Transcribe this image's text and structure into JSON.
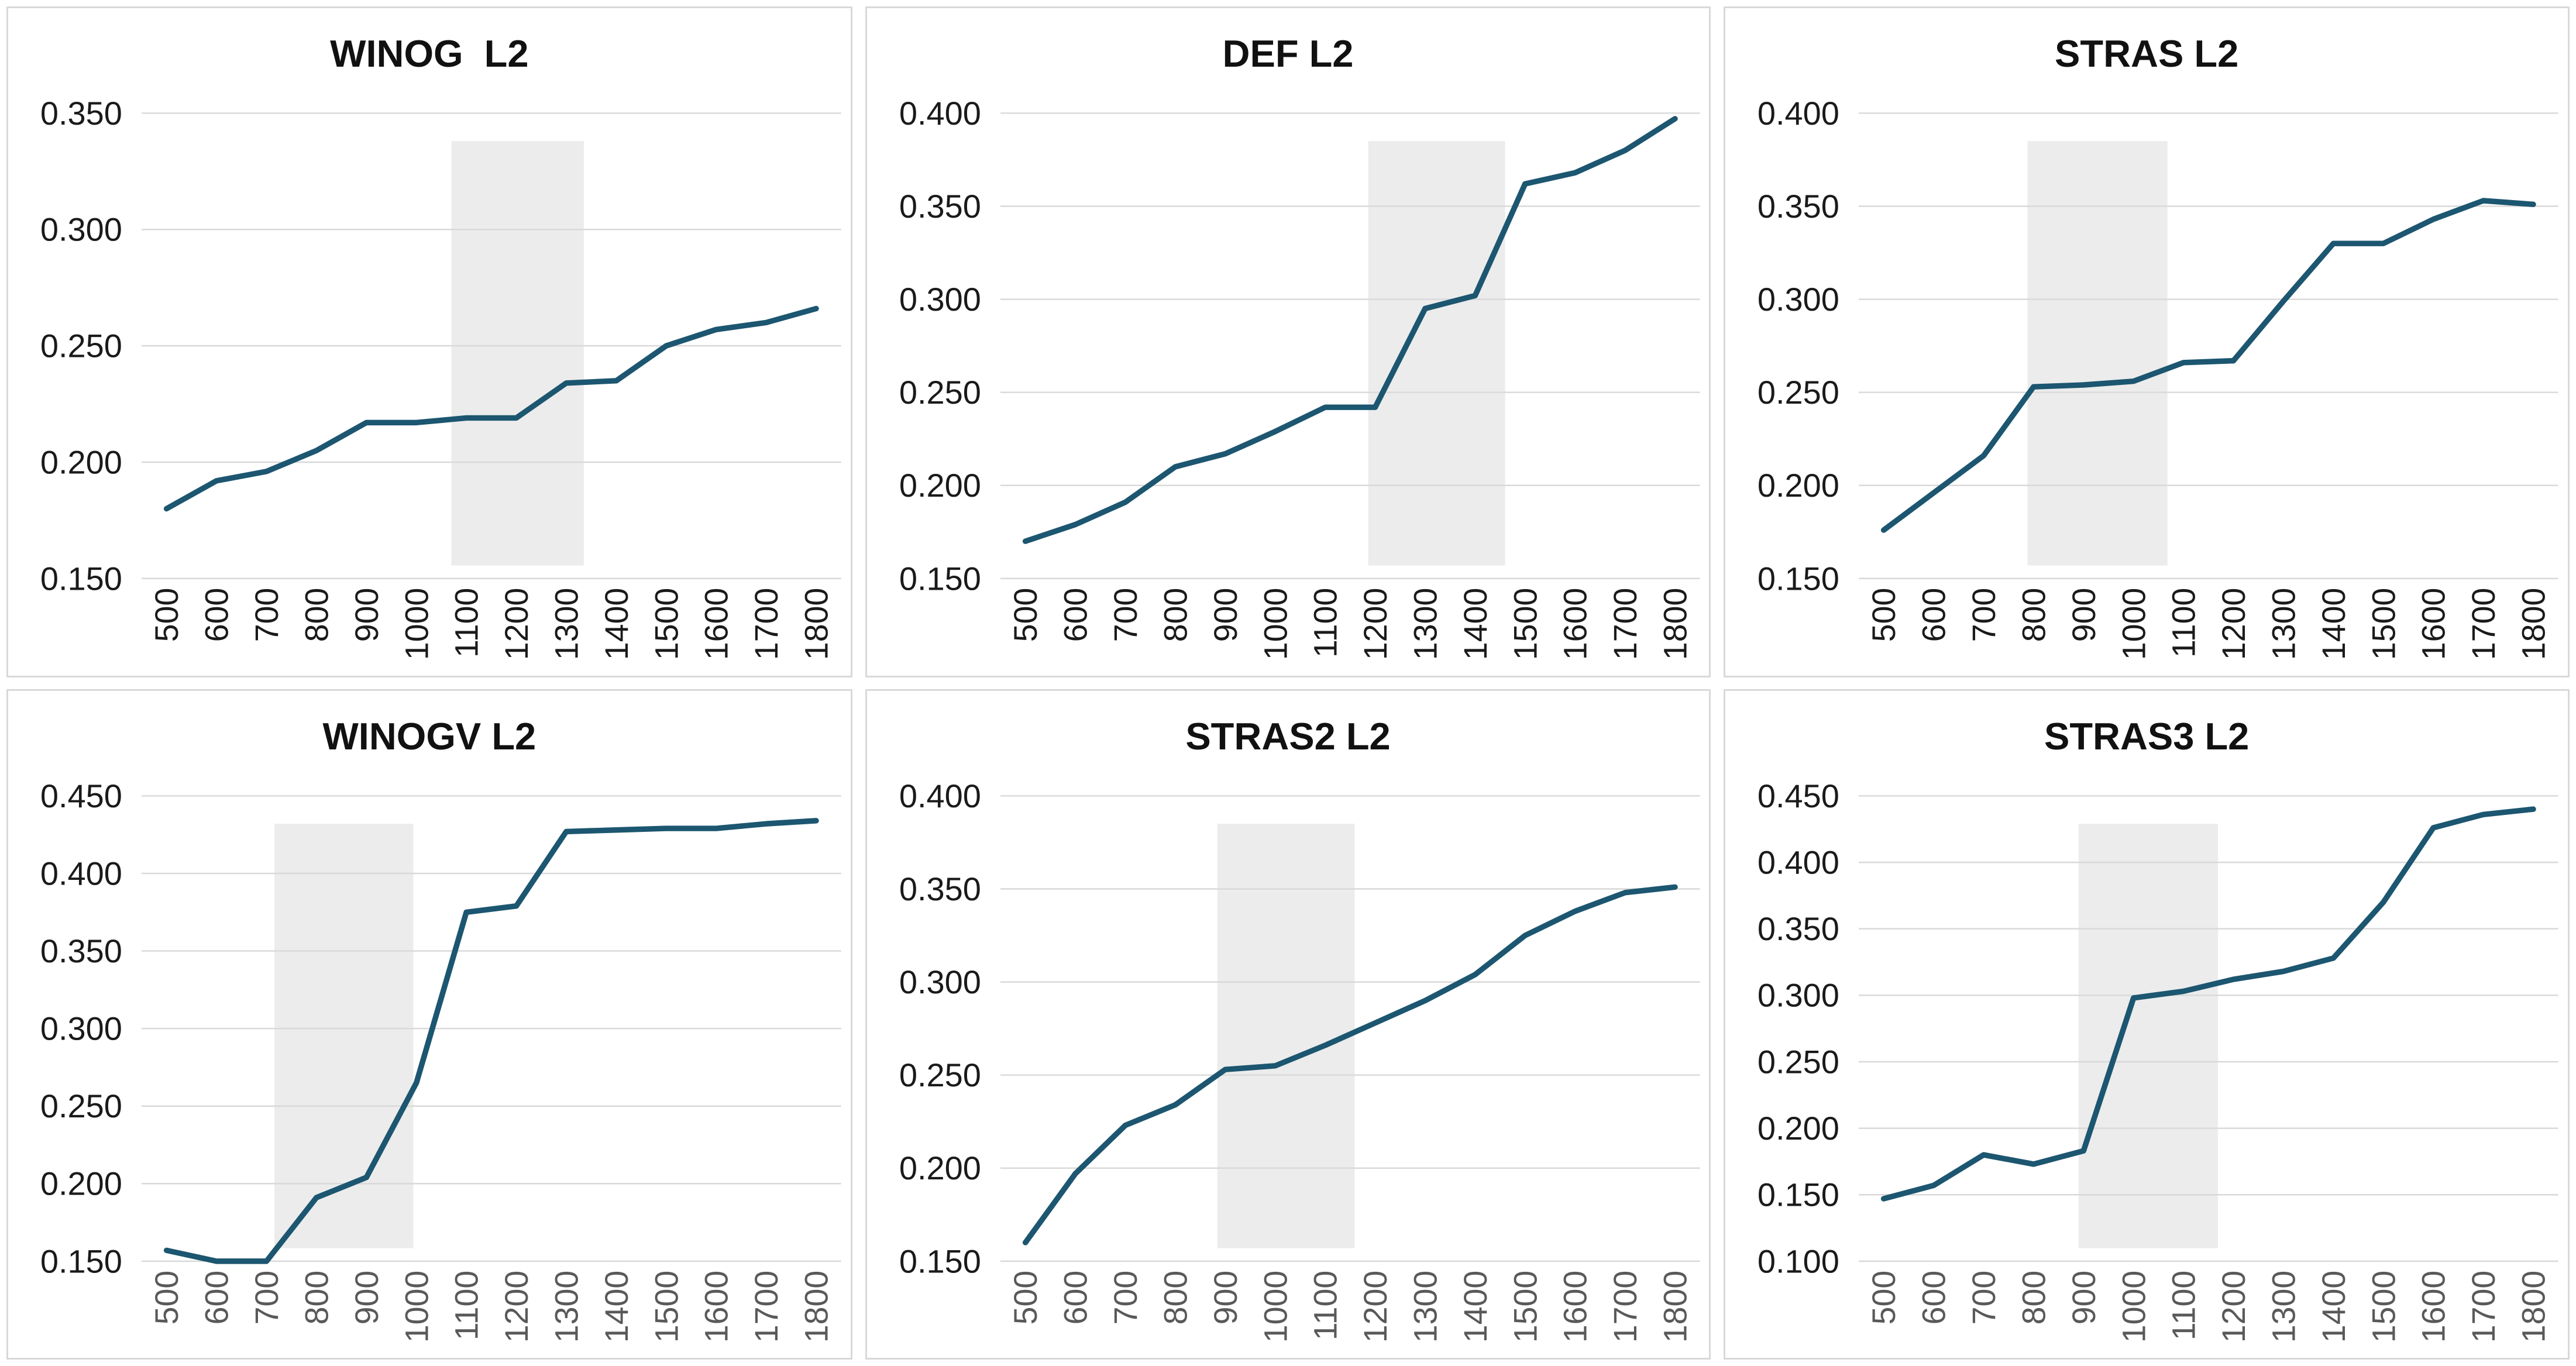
{
  "styles": {
    "line_color": "#1C5670",
    "band_color": "#ECECEC",
    "grid_color": "#D9D9D9",
    "panel_border_color": "#D9D9D9",
    "x_label_color_top_row": "#1A1A1A",
    "x_label_color_bottom_row": "#595959",
    "y_label_color": "#1A1A1A",
    "title_color": "#111111"
  },
  "chart_data": [
    {
      "type": "line",
      "title": "WINOG  L2",
      "categories": [
        500,
        600,
        700,
        800,
        900,
        1000,
        1100,
        1200,
        1300,
        1400,
        1500,
        1600,
        1700,
        1800
      ],
      "values": [
        0.18,
        0.192,
        0.196,
        0.205,
        0.217,
        0.217,
        0.219,
        0.219,
        0.234,
        0.235,
        0.25,
        0.257,
        0.26,
        0.266
      ],
      "ylim": [
        0.15,
        0.35
      ],
      "ytick_step": 0.05,
      "ytick_labels": [
        "0.350",
        "0.300",
        "0.250",
        "0.200",
        "0.150"
      ],
      "band_x": {
        "from": 1070,
        "to": 1335
      },
      "grid": true,
      "legend": "none",
      "xlabel_color": "#1A1A1A"
    },
    {
      "type": "line",
      "title": "DEF L2",
      "categories": [
        500,
        600,
        700,
        800,
        900,
        1000,
        1100,
        1200,
        1300,
        1400,
        1500,
        1600,
        1700,
        1800
      ],
      "values": [
        0.17,
        0.179,
        0.191,
        0.21,
        0.217,
        0.229,
        0.242,
        0.242,
        0.295,
        0.302,
        0.362,
        0.368,
        0.38,
        0.397
      ],
      "ylim": [
        0.15,
        0.4
      ],
      "ytick_step": 0.05,
      "ytick_labels": [
        "0.400",
        "0.350",
        "0.300",
        "0.250",
        "0.200",
        "0.150"
      ],
      "band_x": {
        "from": 1186,
        "to": 1460
      },
      "grid": true,
      "legend": "none",
      "xlabel_color": "#1A1A1A"
    },
    {
      "type": "line",
      "title": "STRAS L2",
      "categories": [
        500,
        600,
        700,
        800,
        900,
        1000,
        1100,
        1200,
        1300,
        1400,
        1500,
        1600,
        1700,
        1800
      ],
      "values": [
        0.176,
        0.196,
        0.216,
        0.253,
        0.254,
        0.256,
        0.266,
        0.267,
        0.299,
        0.33,
        0.33,
        0.343,
        0.353,
        0.351
      ],
      "ylim": [
        0.15,
        0.4
      ],
      "ytick_step": 0.05,
      "ytick_labels": [
        "0.400",
        "0.350",
        "0.300",
        "0.250",
        "0.200",
        "0.150"
      ],
      "band_x": {
        "from": 788,
        "to": 1068
      },
      "grid": true,
      "legend": "none",
      "xlabel_color": "#1A1A1A"
    },
    {
      "type": "line",
      "title": "WINOGV L2",
      "categories": [
        500,
        600,
        700,
        800,
        900,
        1000,
        1100,
        1200,
        1300,
        1400,
        1500,
        1600,
        1700,
        1800
      ],
      "values": [
        0.157,
        0.15,
        0.15,
        0.191,
        0.204,
        0.265,
        0.375,
        0.379,
        0.427,
        0.428,
        0.429,
        0.429,
        0.432,
        0.434
      ],
      "ylim": [
        0.15,
        0.45
      ],
      "ytick_step": 0.05,
      "ytick_labels": [
        "0.450",
        "0.400",
        "0.350",
        "0.300",
        "0.250",
        "0.200",
        "0.150"
      ],
      "band_x": {
        "from": 716,
        "to": 994
      },
      "grid": true,
      "legend": "none",
      "xlabel_color": "#595959"
    },
    {
      "type": "line",
      "title": "STRAS2 L2",
      "categories": [
        500,
        600,
        700,
        800,
        900,
        1000,
        1100,
        1200,
        1300,
        1400,
        1500,
        1600,
        1700,
        1800
      ],
      "values": [
        0.16,
        0.197,
        0.223,
        0.234,
        0.253,
        0.255,
        0.266,
        0.278,
        0.29,
        0.304,
        0.325,
        0.338,
        0.348,
        0.351
      ],
      "ylim": [
        0.15,
        0.4
      ],
      "ytick_step": 0.05,
      "ytick_labels": [
        "0.400",
        "0.350",
        "0.300",
        "0.250",
        "0.200",
        "0.150"
      ],
      "band_x": {
        "from": 884,
        "to": 1159
      },
      "grid": true,
      "legend": "none",
      "xlabel_color": "#595959"
    },
    {
      "type": "line",
      "title": "STRAS3 L2",
      "categories": [
        500,
        600,
        700,
        800,
        900,
        1000,
        1100,
        1200,
        1300,
        1400,
        1500,
        1600,
        1700,
        1800
      ],
      "values": [
        0.147,
        0.157,
        0.18,
        0.173,
        0.183,
        0.298,
        0.303,
        0.312,
        0.318,
        0.328,
        0.37,
        0.426,
        0.436,
        0.44
      ],
      "ylim": [
        0.1,
        0.45
      ],
      "ytick_step": 0.05,
      "ytick_labels": [
        "0.450",
        "0.400",
        "0.350",
        "0.300",
        "0.250",
        "0.200",
        "0.150",
        "0.100"
      ],
      "band_x": {
        "from": 890,
        "to": 1169
      },
      "grid": true,
      "legend": "none",
      "xlabel_color": "#595959"
    }
  ]
}
